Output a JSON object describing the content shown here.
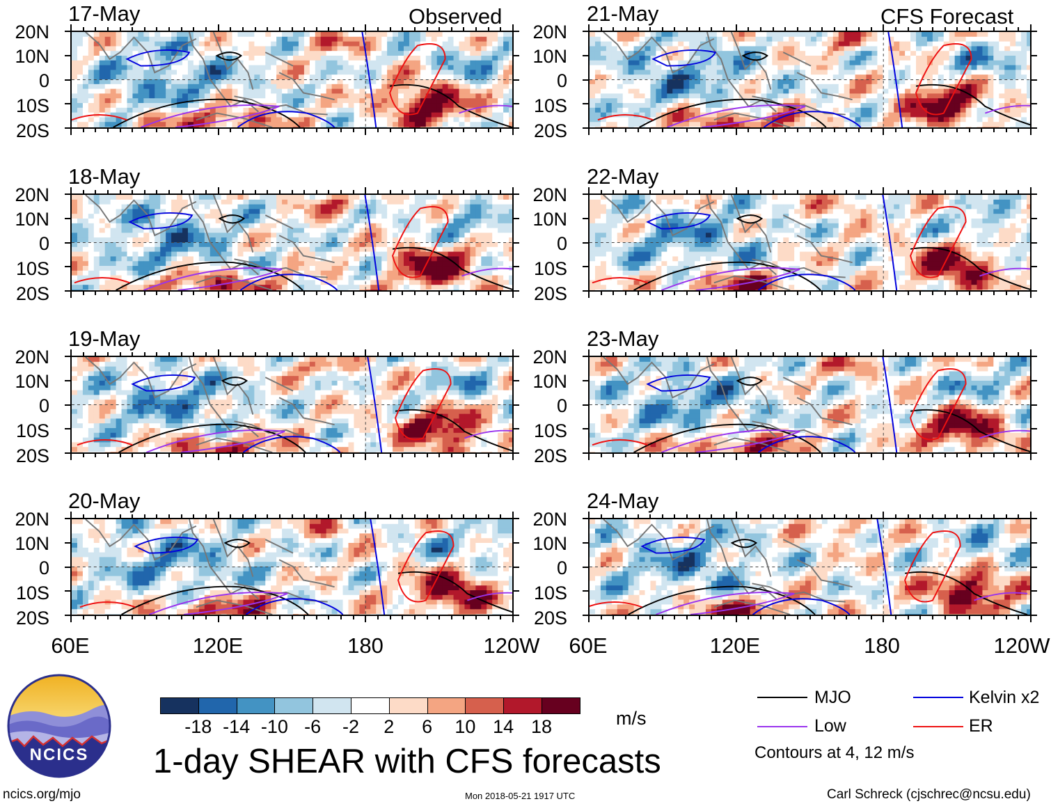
{
  "panels": {
    "observed": {
      "tag": "Observed",
      "dates": [
        "17-May",
        "18-May",
        "19-May",
        "20-May"
      ]
    },
    "forecast": {
      "tag": "CFS Forecast",
      "dates": [
        "21-May",
        "22-May",
        "23-May",
        "24-May"
      ]
    }
  },
  "axes": {
    "lat_labels": [
      "20N",
      "10N",
      "0",
      "10S",
      "20S"
    ],
    "lon_labels": [
      "60E",
      "120E",
      "180",
      "120W"
    ]
  },
  "colorbar": {
    "unit": "m/s",
    "labels": [
      "-18",
      "-14",
      "-10",
      "-6",
      "-2",
      "2",
      "6",
      "10",
      "14",
      "18"
    ],
    "colors": [
      "#16325f",
      "#2166ac",
      "#4393c3",
      "#92c5de",
      "#d1e5f0",
      "#ffffff",
      "#fddbc7",
      "#f4a582",
      "#d6604d",
      "#b2182b",
      "#67001f"
    ]
  },
  "legend": {
    "items": [
      {
        "label": "MJO",
        "color": "#000000"
      },
      {
        "label": "Kelvin x2",
        "color": "#0000dd"
      },
      {
        "label": "Low",
        "color": "#9933ee"
      },
      {
        "label": "ER",
        "color": "#ee1111"
      }
    ],
    "note": "Contours at 4, 12 m/s"
  },
  "title": "1-day SHEAR with CFS forecasts",
  "logo": {
    "text": "NCICS"
  },
  "footer": {
    "url": "ncics.org/mjo",
    "timestamp": "Mon 2018-05-21 1917 UTC",
    "credit": "Carl Schreck (cjschrec@ncsu.edu)"
  }
}
